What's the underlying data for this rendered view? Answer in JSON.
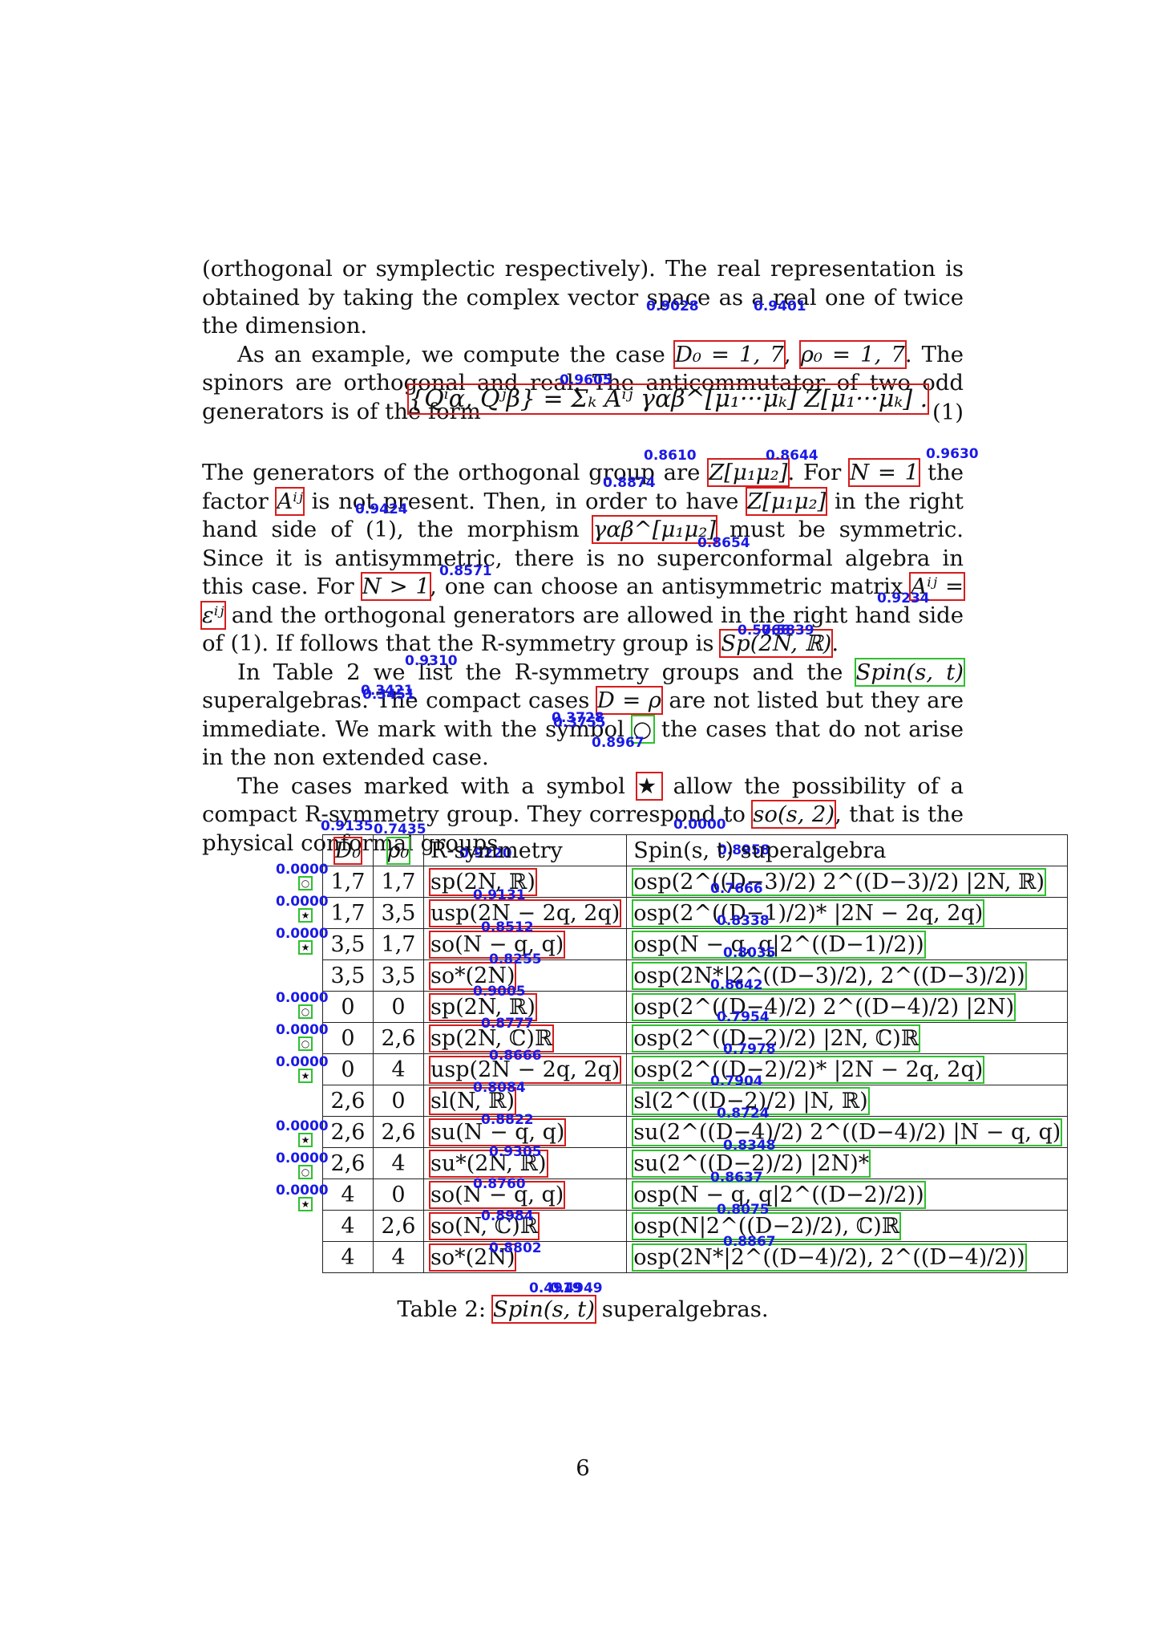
{
  "text": {
    "p1_l1": "(orthogonal or symplectic respectively). The real representation is obtained",
    "p1_l2": "by taking the complex vector space as a real one of twice the dimension.",
    "p2_a": "As an example, we compute the case ",
    "p2_m1": "D₀ = 1, 7",
    "p2_b": ", ",
    "p2_m2": "ρ₀ = 1, 7",
    "p2_c": ". The spinors are orthogonal and real. The anticommutator of two odd generators is of the form",
    "eq_body": "{Qⁱα, Qʲβ} = Σₖ Aⁱʲ γαβ^[μ₁···μₖ] Z[μ₁···μₖ] .",
    "eq_num": "(1)",
    "p3": [
      "The generators of the orthogonal group are ",
      "Z[μ₁μ₂]",
      ". For ",
      "N = 1",
      " the factor ",
      "Aⁱʲ",
      " is not present. Then, in order to have ",
      "Z[μ₁μ₂]",
      " in the right hand side of (1), the morphism ",
      "γαβ^[μ₁μ₂]",
      " must be symmetric. Since it is antisymmetric, there is no superconformal algebra in this case. For ",
      "N > 1",
      ", one can choose an antisymmetric matrix ",
      "Aⁱʲ = εⁱʲ",
      " and the orthogonal generators are allowed in the right hand side of (1). If follows that the R-symmetry group is ",
      "Sp(2N, ℝ)",
      "."
    ],
    "p4": [
      "In Table 2 we list the R-symmetry groups and the ",
      "Spin(s, t)",
      " superalgebras. The compact cases ",
      "D = ρ",
      " are not listed but they are immediate. We mark with the symbol ",
      "○",
      " the cases that do not arise in the non extended case."
    ],
    "p5": [
      "The cases marked with a symbol ",
      "★",
      " allow the possibility of a compact R-symmetry group. They correspond to ",
      "so(s, 2)",
      ", that is the physical conformal groups."
    ],
    "caption_a": "Table 2: ",
    "caption_m": "Spin(s, t)",
    "caption_b": " superalgebras.",
    "page_number": "6"
  },
  "table": {
    "headers": [
      "D₀",
      "ρ₀",
      "R-symmetry",
      "Spin(s, t) superalgebra"
    ],
    "rows": [
      {
        "mark": "○",
        "d": "1,7",
        "rho": "1,7",
        "rsym": "sp(2N, ℝ)",
        "alg": "osp(2^((D−3)/2) 2^((D−3)/2) |2N, ℝ)"
      },
      {
        "mark": "★",
        "d": "1,7",
        "rho": "3,5",
        "rsym": "usp(2N − 2q, 2q)",
        "alg": "osp(2^((D−1)/2)* |2N − 2q, 2q)"
      },
      {
        "mark": "★",
        "d": "3,5",
        "rho": "1,7",
        "rsym": "so(N − q, q)",
        "alg": "osp(N − q, q|2^((D−1)/2))"
      },
      {
        "mark": "",
        "d": "3,5",
        "rho": "3,5",
        "rsym": "so*(2N)",
        "alg": "osp(2N*|2^((D−3)/2), 2^((D−3)/2))"
      },
      {
        "mark": "○",
        "d": "0",
        "rho": "0",
        "rsym": "sp(2N, ℝ)",
        "alg": "osp(2^((D−4)/2) 2^((D−4)/2) |2N)"
      },
      {
        "mark": "○",
        "d": "0",
        "rho": "2,6",
        "rsym": "sp(2N, ℂ)ℝ",
        "alg": "osp(2^((D−2)/2) |2N, ℂ)ℝ"
      },
      {
        "mark": "★",
        "d": "0",
        "rho": "4",
        "rsym": "usp(2N − 2q, 2q)",
        "alg": "osp(2^((D−2)/2)* |2N − 2q, 2q)"
      },
      {
        "mark": "",
        "d": "2,6",
        "rho": "0",
        "rsym": "sl(N, ℝ)",
        "alg": "sl(2^((D−2)/2) |N, ℝ)"
      },
      {
        "mark": "★",
        "d": "2,6",
        "rho": "2,6",
        "rsym": "su(N − q, q)",
        "alg": "su(2^((D−4)/2) 2^((D−4)/2) |N − q, q)"
      },
      {
        "mark": "○",
        "d": "2,6",
        "rho": "4",
        "rsym": "su*(2N, ℝ)",
        "alg": "su(2^((D−2)/2) |2N)*"
      },
      {
        "mark": "★",
        "d": "4",
        "rho": "0",
        "rsym": "so(N − q, q)",
        "alg": "osp(N − q, q|2^((D−2)/2))"
      },
      {
        "mark": "",
        "d": "4",
        "rho": "2,6",
        "rsym": "so(N, ℂ)ℝ",
        "alg": "osp(N|2^((D−2)/2), ℂ)ℝ"
      },
      {
        "mark": "",
        "d": "4",
        "rho": "4",
        "rsym": "so*(2N)",
        "alg": "osp(2N*|2^((D−4)/2), 2^((D−4)/2))"
      }
    ]
  },
  "scores": {
    "s_p2_m1": "0.9028",
    "s_p2_m2": "0.9401",
    "s_eq": "0.9605",
    "s_p3_z1": "0.8610",
    "s_p3_z1b": "0.8874",
    "s_p3_n1": "0.8644",
    "s_p3_a": "0.9630",
    "s_p3_gamma": "0.9424",
    "s_p3_n2": "0.8654",
    "s_p3_aeps": "0.8571",
    "s_p3_sp": "0.9234",
    "s_p4_spin_a": "0.5766",
    "s_p4_spin_b": "0.5839",
    "s_p4_drho": "0.9310",
    "s_p4_mark_a": "0.3421",
    "s_p4_mark_b": "0.3451",
    "s_p5_star_a": "0.3728",
    "s_p5_star_b": "0.3755",
    "s_p5_so": "0.8967",
    "s_h_d": "0.9135",
    "s_h_rho": "0.7435",
    "s_h_rsym": "0.9220",
    "s_h_spin": "0.0000",
    "s_h_alg": "0.8958",
    "s_cap_a": "0.4919",
    "s_cap_b": "0.4949",
    "row_rsym": [
      "0.9131",
      "0.8512",
      "0.8255",
      "0.9005",
      "0.8777",
      "0.8666",
      "0.8084",
      "0.8822",
      "0.9305",
      "0.8760",
      "0.8984",
      "0.8802",
      ""
    ],
    "row_alg": [
      "0.7666",
      "0.8338",
      "0.8035",
      "0.8642",
      "0.7954",
      "0.7978",
      "0.7904",
      "0.8724",
      "0.8348",
      "0.8637",
      "0.8075",
      "0.8867",
      ""
    ],
    "row_mark": [
      "0.0000",
      "0.0000",
      "0.0000",
      "",
      "0.0000",
      "0.0000",
      "0.0000",
      "",
      "0.0000",
      "0.0000",
      "0.0000",
      "",
      ""
    ]
  }
}
